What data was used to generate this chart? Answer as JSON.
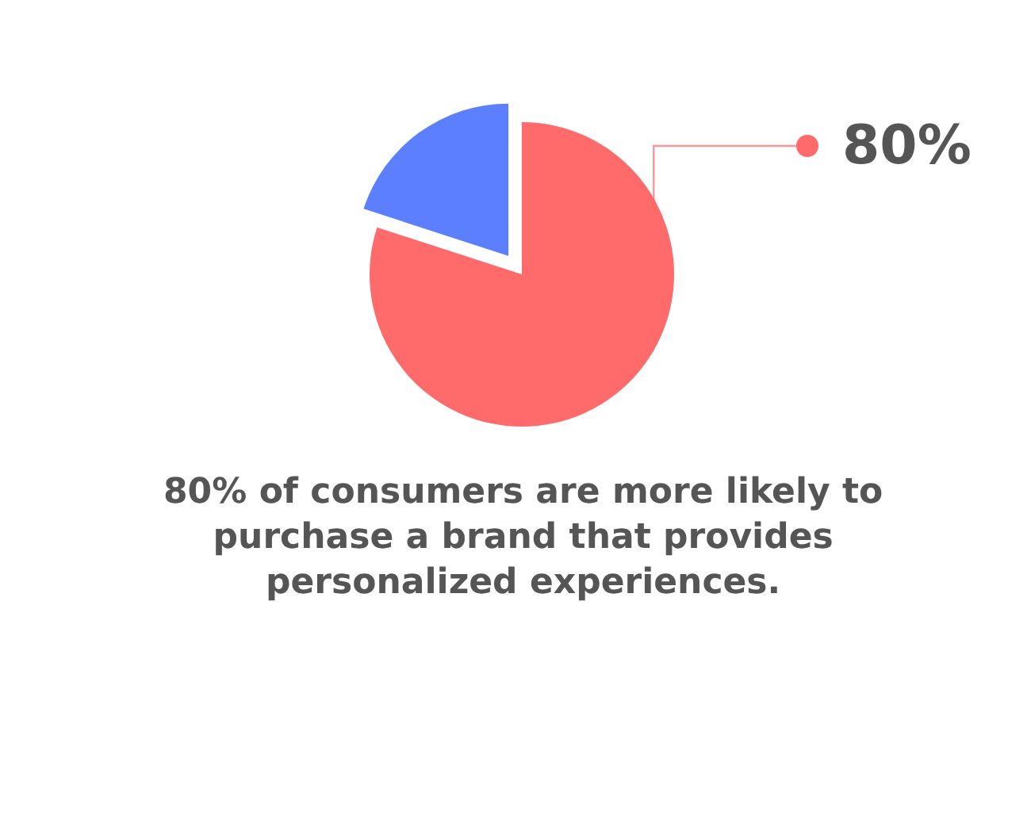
{
  "chart_data": {
    "type": "pie",
    "categories": [
      null,
      null
    ],
    "values": [
      80,
      20
    ],
    "colors": [
      "#ff6b6b",
      "#5b7fff"
    ],
    "value_labels": [
      "80%",
      null
    ],
    "annotations": [
      "80% of consumers are more likely to purchase a brand that provides personalized experiences."
    ]
  }
}
